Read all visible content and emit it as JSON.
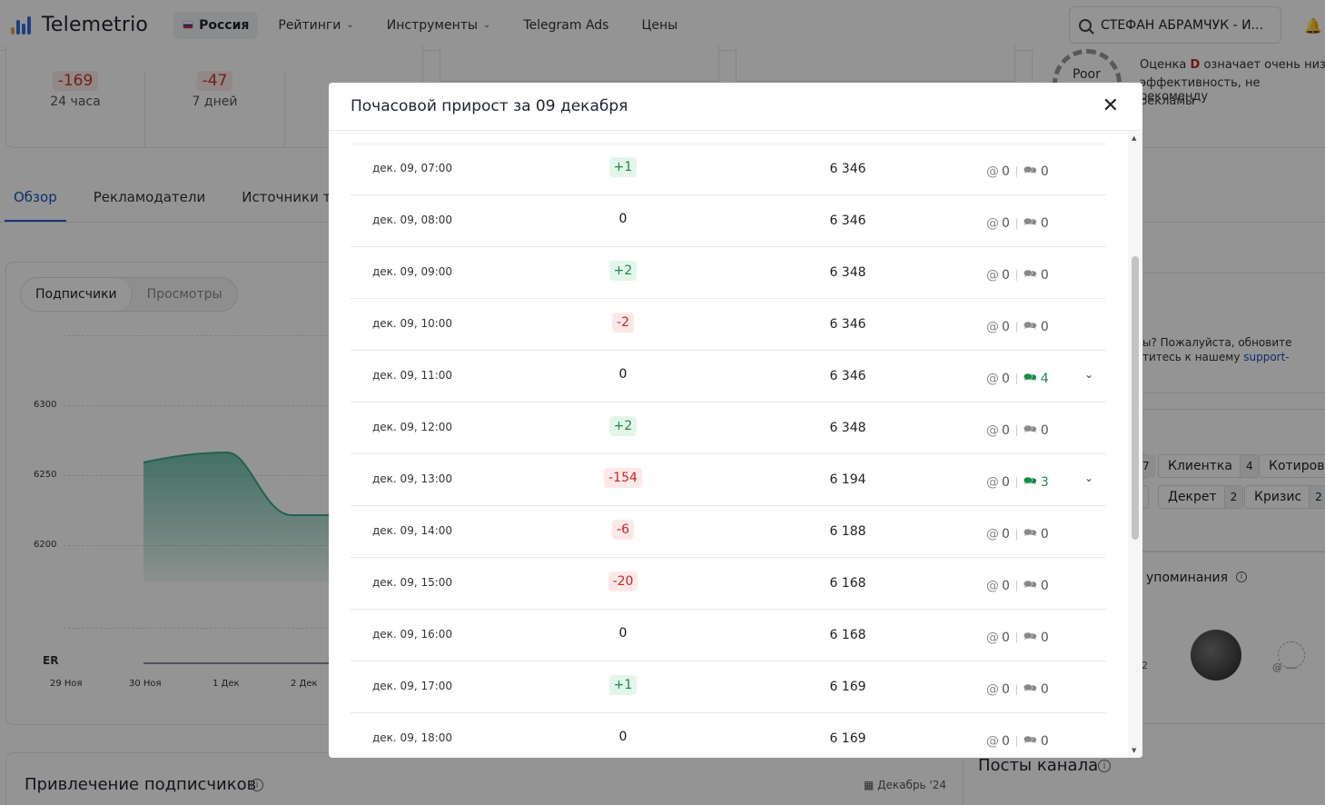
{
  "header": {
    "logo_text": "Telemetrio",
    "country": "Россия",
    "nav": [
      {
        "label": "Рейтинги",
        "has_dropdown": true
      },
      {
        "label": "Инструменты",
        "has_dropdown": true
      },
      {
        "label": "Telegram Ads",
        "has_dropdown": false
      },
      {
        "label": "Цены",
        "has_dropdown": false
      }
    ],
    "search_value": "СТЕФАН АБРАМЧУК - И...",
    "icons": [
      "search-icon",
      "bell-icon"
    ]
  },
  "background": {
    "stats": [
      {
        "value": "-169",
        "label": "24 часа"
      },
      {
        "value": "-47",
        "label": "7 дней"
      }
    ],
    "tabs": [
      "Обзор",
      "Рекламодатели",
      "Источники траф"
    ],
    "active_tab": "Обзор",
    "segment": [
      "Подписчики",
      "Просмотры"
    ],
    "chart_ylabels": [
      "6300",
      "6250",
      "6200"
    ],
    "chart_xlabels": [
      "29 Ноя",
      "30 Ноя",
      "1 Дек",
      "2 Дек"
    ],
    "er_label": "ER",
    "rating_badge": "Poor",
    "rating_text": [
      {
        "text": "Оценка ",
        "bold": "D",
        "tail": " означает очень низ"
      },
      "эффективность, не рекоменду",
      "рекламы"
    ],
    "help_text": [
      "ы? Пожалуйста, обновите",
      "титесь к нашему "
    ],
    "help_link": "support-",
    "chips_row1": [
      {
        "label": "",
        "count": "7"
      },
      {
        "label": "Клиентка",
        "count": "4"
      },
      {
        "label": "Котировк",
        "count": ""
      }
    ],
    "chips_row2": [
      {
        "label": "",
        "count": ""
      },
      {
        "label": "Декрет",
        "count": "2"
      },
      {
        "label": "Кризис",
        "count": "2"
      }
    ],
    "mentions_title": "упоминания",
    "mentions_placeholder": "@ ---",
    "avatar_count": "2",
    "attract_title": "Привлечение подписчиков",
    "attract_date": "Декабрь '24",
    "posts_title": "Посты канала",
    "colors": {
      "chart_fill": "#3aa88a",
      "accent": "#1e5fd3",
      "negative": "#c8262a",
      "positive": "#1b8a4a"
    }
  },
  "modal": {
    "title": "Почасовой прирост за 09 декабря",
    "close_icon": "close-icon",
    "rows": [
      {
        "time": "дек. 09, 07:00",
        "delta": "+1",
        "kind": "pos",
        "total": "6 346",
        "mentions": "0",
        "reposts": "0",
        "expandable": false
      },
      {
        "time": "дек. 09, 08:00",
        "delta": "0",
        "kind": "zero",
        "total": "6 346",
        "mentions": "0",
        "reposts": "0",
        "expandable": false
      },
      {
        "time": "дек. 09, 09:00",
        "delta": "+2",
        "kind": "pos",
        "total": "6 348",
        "mentions": "0",
        "reposts": "0",
        "expandable": false
      },
      {
        "time": "дек. 09, 10:00",
        "delta": "-2",
        "kind": "neg",
        "total": "6 346",
        "mentions": "0",
        "reposts": "0",
        "expandable": false
      },
      {
        "time": "дек. 09, 11:00",
        "delta": "0",
        "kind": "zero",
        "total": "6 346",
        "mentions": "0",
        "reposts": "4",
        "expandable": true
      },
      {
        "time": "дек. 09, 12:00",
        "delta": "+2",
        "kind": "pos",
        "total": "6 348",
        "mentions": "0",
        "reposts": "0",
        "expandable": false
      },
      {
        "time": "дек. 09, 13:00",
        "delta": "-154",
        "kind": "neg",
        "total": "6 194",
        "mentions": "0",
        "reposts": "3",
        "expandable": true
      },
      {
        "time": "дек. 09, 14:00",
        "delta": "-6",
        "kind": "neg",
        "total": "6 188",
        "mentions": "0",
        "reposts": "0",
        "expandable": false
      },
      {
        "time": "дек. 09, 15:00",
        "delta": "-20",
        "kind": "neg",
        "total": "6 168",
        "mentions": "0",
        "reposts": "0",
        "expandable": false
      },
      {
        "time": "дек. 09, 16:00",
        "delta": "0",
        "kind": "zero",
        "total": "6 168",
        "mentions": "0",
        "reposts": "0",
        "expandable": false
      },
      {
        "time": "дек. 09, 17:00",
        "delta": "+1",
        "kind": "pos",
        "total": "6 169",
        "mentions": "0",
        "reposts": "0",
        "expandable": false
      },
      {
        "time": "дек. 09, 18:00",
        "delta": "0",
        "kind": "zero",
        "total": "6 169",
        "mentions": "0",
        "reposts": "0",
        "expandable": false
      }
    ]
  }
}
